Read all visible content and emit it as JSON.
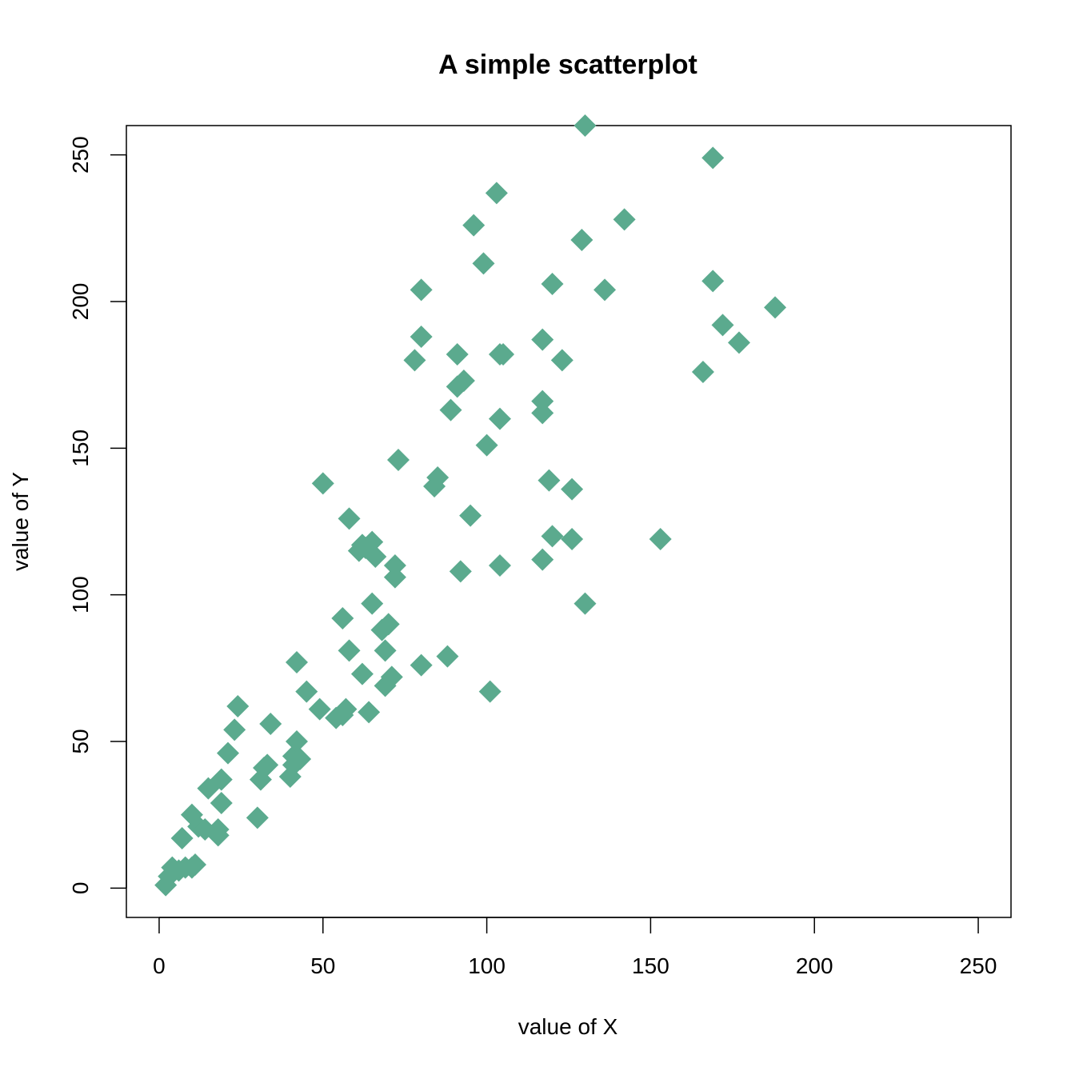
{
  "chart_data": {
    "type": "scatter",
    "title": "A simple scatterplot",
    "xlabel": "value of X",
    "ylabel": "value of Y",
    "xlim": [
      -10,
      260
    ],
    "ylim": [
      -10,
      260
    ],
    "xticks": [
      0,
      50,
      100,
      150,
      200,
      250
    ],
    "yticks": [
      0,
      50,
      100,
      150,
      200,
      250
    ],
    "marker": "diamond",
    "color": "#5BAA8E",
    "points": [
      {
        "x": 2,
        "y": 1
      },
      {
        "x": 3,
        "y": 4
      },
      {
        "x": 4,
        "y": 7
      },
      {
        "x": 6,
        "y": 6
      },
      {
        "x": 8,
        "y": 7
      },
      {
        "x": 10,
        "y": 7
      },
      {
        "x": 11,
        "y": 8
      },
      {
        "x": 7,
        "y": 17
      },
      {
        "x": 10,
        "y": 25
      },
      {
        "x": 12,
        "y": 21
      },
      {
        "x": 14,
        "y": 20
      },
      {
        "x": 18,
        "y": 20
      },
      {
        "x": 18,
        "y": 18
      },
      {
        "x": 15,
        "y": 34
      },
      {
        "x": 19,
        "y": 37
      },
      {
        "x": 19,
        "y": 29
      },
      {
        "x": 21,
        "y": 46
      },
      {
        "x": 23,
        "y": 54
      },
      {
        "x": 24,
        "y": 62
      },
      {
        "x": 30,
        "y": 24
      },
      {
        "x": 31,
        "y": 37
      },
      {
        "x": 32,
        "y": 41
      },
      {
        "x": 33,
        "y": 42
      },
      {
        "x": 34,
        "y": 56
      },
      {
        "x": 40,
        "y": 38
      },
      {
        "x": 41,
        "y": 42
      },
      {
        "x": 41,
        "y": 45
      },
      {
        "x": 42,
        "y": 50
      },
      {
        "x": 43,
        "y": 44
      },
      {
        "x": 42,
        "y": 77
      },
      {
        "x": 45,
        "y": 67
      },
      {
        "x": 49,
        "y": 61
      },
      {
        "x": 50,
        "y": 138
      },
      {
        "x": 54,
        "y": 58
      },
      {
        "x": 56,
        "y": 59
      },
      {
        "x": 57,
        "y": 61
      },
      {
        "x": 56,
        "y": 92
      },
      {
        "x": 58,
        "y": 81
      },
      {
        "x": 58,
        "y": 126
      },
      {
        "x": 61,
        "y": 115
      },
      {
        "x": 62,
        "y": 117
      },
      {
        "x": 63,
        "y": 116
      },
      {
        "x": 65,
        "y": 118
      },
      {
        "x": 66,
        "y": 113
      },
      {
        "x": 62,
        "y": 73
      },
      {
        "x": 64,
        "y": 60
      },
      {
        "x": 65,
        "y": 97
      },
      {
        "x": 68,
        "y": 88
      },
      {
        "x": 70,
        "y": 90
      },
      {
        "x": 69,
        "y": 81
      },
      {
        "x": 69,
        "y": 69
      },
      {
        "x": 71,
        "y": 72
      },
      {
        "x": 72,
        "y": 110
      },
      {
        "x": 72,
        "y": 106
      },
      {
        "x": 73,
        "y": 146
      },
      {
        "x": 78,
        "y": 180
      },
      {
        "x": 80,
        "y": 204
      },
      {
        "x": 80,
        "y": 188
      },
      {
        "x": 80,
        "y": 76
      },
      {
        "x": 84,
        "y": 137
      },
      {
        "x": 85,
        "y": 140
      },
      {
        "x": 88,
        "y": 79
      },
      {
        "x": 89,
        "y": 163
      },
      {
        "x": 91,
        "y": 171
      },
      {
        "x": 91,
        "y": 182
      },
      {
        "x": 93,
        "y": 173
      },
      {
        "x": 92,
        "y": 108
      },
      {
        "x": 95,
        "y": 127
      },
      {
        "x": 96,
        "y": 226
      },
      {
        "x": 99,
        "y": 213
      },
      {
        "x": 100,
        "y": 151
      },
      {
        "x": 101,
        "y": 67
      },
      {
        "x": 103,
        "y": 237
      },
      {
        "x": 104,
        "y": 182
      },
      {
        "x": 105,
        "y": 182
      },
      {
        "x": 104,
        "y": 160
      },
      {
        "x": 104,
        "y": 110
      },
      {
        "x": 117,
        "y": 187
      },
      {
        "x": 117,
        "y": 166
      },
      {
        "x": 117,
        "y": 162
      },
      {
        "x": 117,
        "y": 112
      },
      {
        "x": 119,
        "y": 139
      },
      {
        "x": 120,
        "y": 120
      },
      {
        "x": 120,
        "y": 206
      },
      {
        "x": 123,
        "y": 180
      },
      {
        "x": 126,
        "y": 136
      },
      {
        "x": 126,
        "y": 119
      },
      {
        "x": 129,
        "y": 221
      },
      {
        "x": 130,
        "y": 97
      },
      {
        "x": 130,
        "y": 260
      },
      {
        "x": 136,
        "y": 204
      },
      {
        "x": 142,
        "y": 228
      },
      {
        "x": 153,
        "y": 119
      },
      {
        "x": 166,
        "y": 176
      },
      {
        "x": 169,
        "y": 249
      },
      {
        "x": 169,
        "y": 207
      },
      {
        "x": 172,
        "y": 192
      },
      {
        "x": 177,
        "y": 186
      },
      {
        "x": 188,
        "y": 198
      }
    ]
  }
}
